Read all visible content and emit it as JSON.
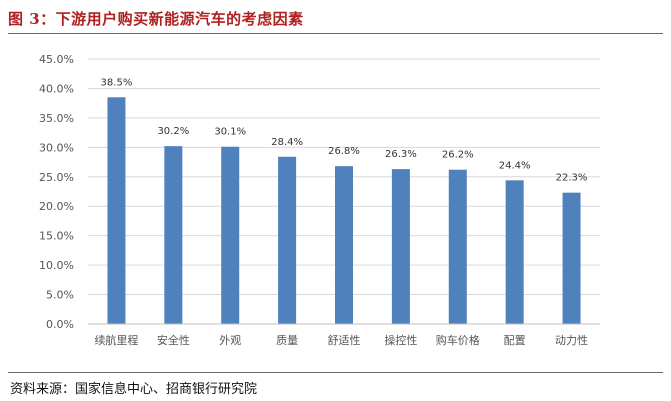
{
  "figure": {
    "title": "图 3：下游用户购买新能源汽车的考虑因素",
    "source": "资料来源：国家信息中心、招商银行研究院"
  },
  "chart_data": {
    "type": "bar",
    "title": "",
    "xlabel": "",
    "ylabel": "",
    "categories": [
      "续航里程",
      "安全性",
      "外观",
      "质量",
      "舒适性",
      "操控性",
      "购车价格",
      "配置",
      "动力性"
    ],
    "values": [
      38.5,
      30.2,
      30.1,
      28.4,
      26.8,
      26.3,
      26.2,
      24.4,
      22.3
    ],
    "value_labels": [
      "38.5%",
      "30.2%",
      "30.1%",
      "28.4%",
      "26.8%",
      "26.3%",
      "26.2%",
      "24.4%",
      "22.3%"
    ],
    "ylim": [
      0,
      45
    ],
    "yticks": [
      "0.0%",
      "5.0%",
      "10.0%",
      "15.0%",
      "20.0%",
      "25.0%",
      "30.0%",
      "35.0%",
      "40.0%",
      "45.0%"
    ],
    "grid": true,
    "legend": "none",
    "bar_color": "#4f81bd",
    "grid_color": "#d9d9d9"
  }
}
